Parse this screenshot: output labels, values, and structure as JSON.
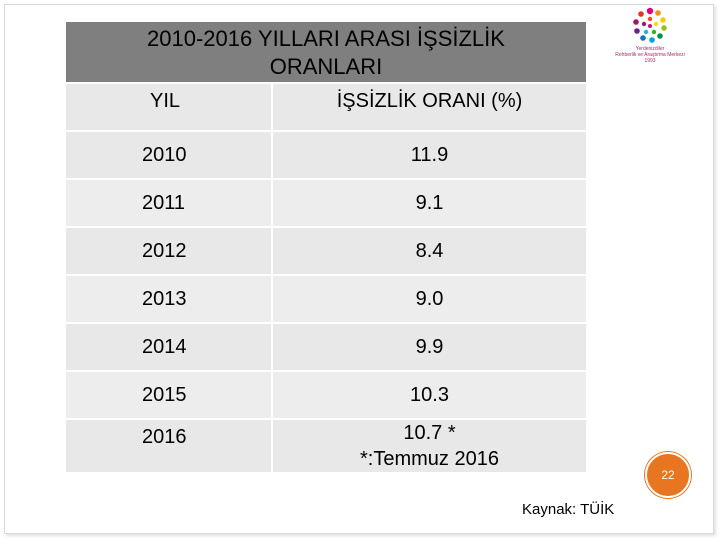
{
  "slide": {
    "title_line1": "2010-2016 YILLARI ARASI İŞSİZLİK",
    "title_line2": "ORANLARI",
    "page_number": "22",
    "source": "Kaynak: TÜİK"
  },
  "logo": {
    "text_line1": "Yerdenizdiler",
    "text_line2": "Rehberlik ve Araştırma Merkezi",
    "text_line3": "1993"
  },
  "table": {
    "headers": [
      "YIL",
      "İŞSİZLİK ORANI (%)"
    ],
    "rows": [
      {
        "year": "2010",
        "rate": "11.9"
      },
      {
        "year": "2011",
        "rate": "9.1"
      },
      {
        "year": "2012",
        "rate": "8.4"
      },
      {
        "year": "2013",
        "rate": "9.0"
      },
      {
        "year": "2014",
        "rate": "9.9"
      },
      {
        "year": "2015",
        "rate": "10.3"
      },
      {
        "year": "2016",
        "rate": "10.7   *",
        "note": "*:Temmuz 2016"
      }
    ]
  },
  "colors": {
    "title_bg": "#7f7f7f",
    "cell_bg": "#e8e8e8",
    "badge": "#e8751f"
  }
}
